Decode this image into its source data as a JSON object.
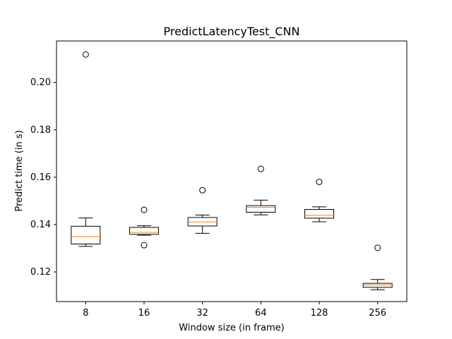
{
  "chart_data": {
    "type": "box",
    "title": "PredictLatencyTest_CNN",
    "xlabel": "Window size (in frame)",
    "ylabel": "Predict time (in s)",
    "ylim": [
      0.1075,
      0.2175
    ],
    "yticks": [
      "0.12",
      "0.14",
      "0.16",
      "0.18",
      "0.20"
    ],
    "ytick_values": [
      0.12,
      0.14,
      0.16,
      0.18,
      0.2
    ],
    "grid": false,
    "categories": [
      "8",
      "16",
      "32",
      "64",
      "128",
      "256"
    ],
    "boxes": [
      {
        "category": "8",
        "whisker_low": 0.1308,
        "q1": 0.1318,
        "median": 0.1349,
        "q3": 0.1393,
        "whisker_high": 0.1428,
        "outliers": [
          0.2118
        ]
      },
      {
        "category": "16",
        "whisker_low": 0.1355,
        "q1": 0.1359,
        "median": 0.1367,
        "q3": 0.1388,
        "whisker_high": 0.1395,
        "outliers": [
          0.1462,
          0.1313
        ]
      },
      {
        "category": "32",
        "whisker_low": 0.1363,
        "q1": 0.1394,
        "median": 0.1411,
        "q3": 0.143,
        "whisker_high": 0.144,
        "outliers": [
          0.1545
        ]
      },
      {
        "category": "64",
        "whisker_low": 0.1441,
        "q1": 0.1452,
        "median": 0.1473,
        "q3": 0.148,
        "whisker_high": 0.1503,
        "outliers": [
          0.1635
        ]
      },
      {
        "category": "128",
        "whisker_low": 0.1412,
        "q1": 0.1427,
        "median": 0.1439,
        "q3": 0.1464,
        "whisker_high": 0.1475,
        "outliers": [
          0.158
        ]
      },
      {
        "category": "256",
        "whisker_low": 0.1125,
        "q1": 0.1135,
        "median": 0.1145,
        "q3": 0.1152,
        "whisker_high": 0.1168,
        "outliers": [
          0.1302
        ]
      }
    ],
    "colors": {
      "box": "#000000",
      "median": "#ff7f0e",
      "background": "#ffffff"
    }
  }
}
